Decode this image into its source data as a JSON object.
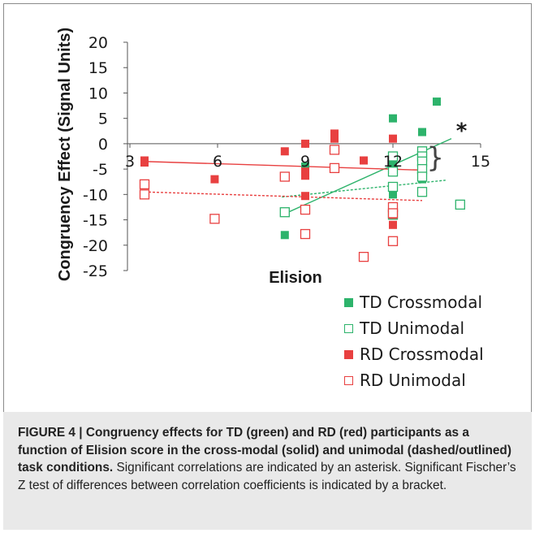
{
  "chart_data": {
    "type": "scatter",
    "xlabel": "Elision",
    "ylabel": "Congruency Effect (Signal Units)",
    "xlim": [
      3,
      15
    ],
    "ylim": [
      -25,
      20
    ],
    "x_ticks": [
      3,
      6,
      9,
      12,
      15
    ],
    "y_ticks": [
      20,
      15,
      10,
      5,
      0,
      -5,
      -10,
      -15,
      -20,
      -25
    ],
    "grid": false,
    "legend_position": "bottom-right",
    "annotations": [
      "*",
      "}"
    ],
    "series": [
      {
        "name": "TD Crossmodal",
        "marker": "filled-square",
        "color": "#2db36b",
        "x": [
          8.3,
          9.0,
          9.0,
          12.0,
          12.0,
          12.0,
          12.0,
          12.0,
          12.0,
          13.0,
          13.0,
          13.0,
          13.0,
          13.0,
          13.0,
          13.0,
          13.5
        ],
        "y": [
          -18,
          -4.5,
          -6,
          5,
          -4,
          -5,
          -9,
          -9.5,
          -10,
          2.3,
          -3.5,
          -4.5,
          -5.5,
          -6,
          -6.5,
          -7,
          8.3
        ]
      },
      {
        "name": "TD Unimodal",
        "marker": "open-square",
        "color": "#2db36b",
        "x": [
          8.3,
          12.0,
          12.0,
          12.0,
          12.0,
          13.0,
          13.0,
          13.0,
          13.0,
          13.0,
          13.0,
          14.3
        ],
        "y": [
          -13.5,
          -2.5,
          -5.5,
          -8.5,
          -14,
          -1.5,
          -2.5,
          -3.5,
          -5,
          -6.5,
          -9.5,
          -12
        ]
      },
      {
        "name": "RD Crossmodal",
        "marker": "filled-square",
        "color": "#e84040",
        "x": [
          3.5,
          3.5,
          5.9,
          8.3,
          9.0,
          9.0,
          9.0,
          9.0,
          10.0,
          10.0,
          11.0,
          12.0,
          12.0,
          12.0
        ],
        "y": [
          -3.3,
          -3.7,
          -7,
          -1.5,
          0,
          -5.5,
          -6.3,
          -10.3,
          2,
          1,
          -3.3,
          1,
          -14,
          -16
        ]
      },
      {
        "name": "RD Unimodal",
        "marker": "open-square",
        "color": "#e84040",
        "x": [
          3.5,
          3.5,
          5.9,
          8.3,
          9.0,
          9.0,
          10.0,
          10.0,
          11.0,
          12.0,
          12.0,
          12.0
        ],
        "y": [
          -8,
          -10,
          -14.8,
          -6.5,
          -13,
          -17.8,
          -1.2,
          -4.8,
          -22.3,
          -12.5,
          -13.7,
          -19.2
        ]
      }
    ],
    "trend_lines": [
      {
        "series": "TD Crossmodal",
        "style": "solid",
        "color": "#2db36b",
        "x": [
          8.3,
          14.0
        ],
        "y": [
          -13.8,
          1.0
        ]
      },
      {
        "series": "TD Unimodal",
        "style": "dashed",
        "color": "#2db36b",
        "x": [
          8.2,
          13.8
        ],
        "y": [
          -10.5,
          -7.2
        ]
      },
      {
        "series": "RD Crossmodal",
        "style": "solid",
        "color": "#e84040",
        "x": [
          3.5,
          13.0
        ],
        "y": [
          -3.5,
          -5.2
        ]
      },
      {
        "series": "RD Unimodal",
        "style": "dashed",
        "color": "#e84040",
        "x": [
          3.5,
          13.0
        ],
        "y": [
          -9.5,
          -11.2
        ]
      }
    ]
  },
  "caption": {
    "bold": "FIGURE 4 | Congruency effects for TD (green) and RD (red) participants as a function of Elision score in the cross-modal (solid) and unimodal (dashed/outlined) task conditions.",
    "body": " Significant correlations are indicated by an asterisk. Significant Fischer’s Z test of differences between correlation coefficients is indicated by a bracket."
  }
}
